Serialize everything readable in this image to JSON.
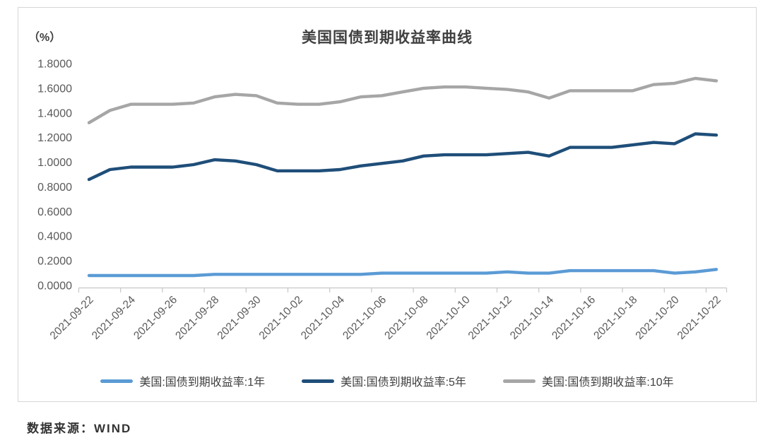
{
  "panel": {
    "unit_label": "（%）",
    "source_note": "数据来源：WIND"
  },
  "colors": {
    "title_text": "#404040",
    "axis_text": "#595959",
    "axis_line": "#c6c6c6",
    "panel_border": "#d6d6d6",
    "series_1y": "#5b9bd5",
    "series_5y": "#1f4e79",
    "series_10y": "#a6a6a6"
  },
  "chart_data": {
    "type": "line",
    "title": "美国国债到期收益率曲线",
    "ylabel": "（%）",
    "xlabel": "",
    "grid": false,
    "legend_position": "bottom",
    "ylim": [
      0.0,
      1.8
    ],
    "ytick_step": 0.2,
    "ytick_labels": [
      "1.8000",
      "1.6000",
      "1.4000",
      "1.2000",
      "1.0000",
      "0.8000",
      "0.6000",
      "0.4000",
      "0.2000",
      "0.0000"
    ],
    "x": [
      "2021-09-22",
      "2021-09-23",
      "2021-09-24",
      "2021-09-25",
      "2021-09-26",
      "2021-09-27",
      "2021-09-28",
      "2021-09-29",
      "2021-09-30",
      "2021-10-01",
      "2021-10-02",
      "2021-10-03",
      "2021-10-04",
      "2021-10-05",
      "2021-10-06",
      "2021-10-07",
      "2021-10-08",
      "2021-10-09",
      "2021-10-10",
      "2021-10-11",
      "2021-10-12",
      "2021-10-13",
      "2021-10-14",
      "2021-10-15",
      "2021-10-16",
      "2021-10-17",
      "2021-10-18",
      "2021-10-19",
      "2021-10-20",
      "2021-10-21",
      "2021-10-22"
    ],
    "xtick_labels": [
      "2021-09-22",
      "2021-09-24",
      "2021-09-26",
      "2021-09-28",
      "2021-09-30",
      "2021-10-02",
      "2021-10-04",
      "2021-10-06",
      "2021-10-08",
      "2021-10-10",
      "2021-10-12",
      "2021-10-14",
      "2021-10-16",
      "2021-10-18",
      "2021-10-20",
      "2021-10-22"
    ],
    "series": [
      {
        "name": "美国:国债到期收益率:1年",
        "short": "1y",
        "color": "#5b9bd5",
        "values": [
          0.08,
          0.08,
          0.08,
          0.08,
          0.08,
          0.08,
          0.09,
          0.09,
          0.09,
          0.09,
          0.09,
          0.09,
          0.09,
          0.09,
          0.1,
          0.1,
          0.1,
          0.1,
          0.1,
          0.1,
          0.11,
          0.1,
          0.1,
          0.12,
          0.12,
          0.12,
          0.12,
          0.12,
          0.1,
          0.11,
          0.13
        ]
      },
      {
        "name": "美国:国债到期收益率:5年",
        "short": "5y",
        "color": "#1f4e79",
        "values": [
          0.86,
          0.94,
          0.96,
          0.96,
          0.96,
          0.98,
          1.02,
          1.01,
          0.98,
          0.93,
          0.93,
          0.93,
          0.94,
          0.97,
          0.99,
          1.01,
          1.05,
          1.06,
          1.06,
          1.06,
          1.07,
          1.08,
          1.05,
          1.12,
          1.12,
          1.12,
          1.14,
          1.16,
          1.15,
          1.23,
          1.22
        ]
      },
      {
        "name": "美国:国债到期收益率:10年",
        "short": "10y",
        "color": "#a6a6a6",
        "values": [
          1.32,
          1.42,
          1.47,
          1.47,
          1.47,
          1.48,
          1.53,
          1.55,
          1.54,
          1.48,
          1.47,
          1.47,
          1.49,
          1.53,
          1.54,
          1.57,
          1.6,
          1.61,
          1.61,
          1.6,
          1.59,
          1.57,
          1.52,
          1.58,
          1.58,
          1.58,
          1.58,
          1.63,
          1.64,
          1.68,
          1.66
        ]
      }
    ]
  }
}
